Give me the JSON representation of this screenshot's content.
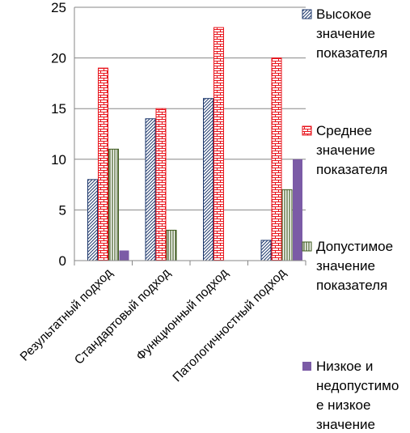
{
  "chart_data": {
    "type": "bar",
    "categories": [
      "Результатный подход",
      "Стандартовый подход",
      "Функционный подход",
      "Патологичностный подход"
    ],
    "series": [
      {
        "name": "Высокое значение показателя",
        "values": [
          8,
          14,
          16,
          2
        ],
        "color": "#1F3A6E",
        "pattern": "diagonal-hatch"
      },
      {
        "name": "Среднее значение показателя",
        "values": [
          19,
          15,
          23,
          20
        ],
        "color": "#E8141C",
        "pattern": "horizontal-brick"
      },
      {
        "name": "Допустимое значение показателя",
        "values": [
          11,
          3,
          0,
          7
        ],
        "color": "#3E5A1E",
        "pattern": "vertical-lines"
      },
      {
        "name": "Низкое и недопустимое низкое значение",
        "values": [
          1,
          0,
          0,
          10
        ],
        "color": "#7B5BA6",
        "pattern": "solid"
      }
    ],
    "legend_lines": [
      [
        "Высокое",
        "значение",
        "показателя"
      ],
      [
        "Среднее",
        "значение",
        "показателя"
      ],
      [
        "Допустимое",
        "значение",
        "показателя"
      ],
      [
        "Низкое и",
        "недопустимо",
        "е низкое",
        "значение"
      ]
    ],
    "ylim": [
      0,
      25
    ],
    "yticks": [
      0,
      5,
      10,
      15,
      20,
      25
    ],
    "grid": true,
    "legend_position": "right",
    "title": "",
    "xlabel": "",
    "ylabel": ""
  }
}
